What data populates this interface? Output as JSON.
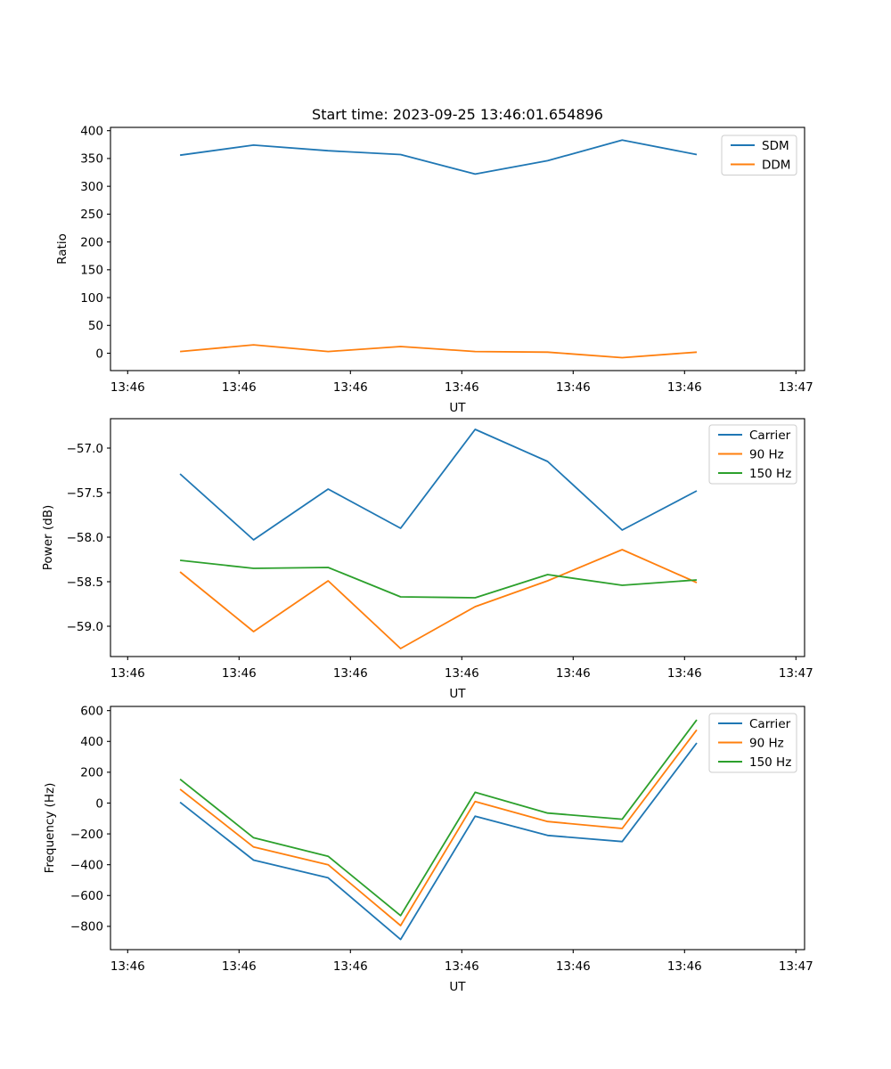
{
  "title": "Start time: 2023-09-25 13:46:01.654896",
  "colors": {
    "blue": "#1f77b4",
    "orange": "#ff7f0e",
    "green": "#2ca02c",
    "spine": "#000000",
    "legend_border": "#cccccc"
  },
  "x_axis": {
    "label": "UT",
    "tick_labels": [
      "13:46",
      "13:46",
      "13:46",
      "13:46",
      "13:46",
      "13:46",
      "13:47"
    ],
    "tick_seconds": [
      0,
      10,
      20,
      30,
      40,
      50,
      60
    ]
  },
  "chart_data": [
    {
      "type": "line",
      "name": "ratio",
      "title": "Start time: 2023-09-25 13:46:01.654896",
      "xlabel": "UT",
      "ylabel": "Ratio",
      "x_tick_labels": [
        "13:46",
        "13:46",
        "13:46",
        "13:46",
        "13:46",
        "13:46",
        "13:47"
      ],
      "x_tick_seconds": [
        0,
        10,
        20,
        30,
        40,
        50,
        60
      ],
      "x_seconds": [
        4.7,
        11.3,
        18.0,
        24.5,
        31.2,
        37.7,
        44.4,
        51.1
      ],
      "yticks": [
        0,
        50,
        100,
        150,
        200,
        250,
        300,
        350,
        400
      ],
      "ytick_labels": [
        "0",
        "50",
        "100",
        "150",
        "200",
        "250",
        "300",
        "350",
        "400"
      ],
      "ylim": [
        -31.2,
        405.9
      ],
      "grid": false,
      "legend_position": "upper right",
      "series": [
        {
          "name": "SDM",
          "color": "#1f77b4",
          "values": [
            356,
            374,
            364,
            357,
            322,
            346,
            383,
            357
          ]
        },
        {
          "name": "DDM",
          "color": "#ff7f0e",
          "values": [
            3,
            15,
            3,
            12,
            3,
            2,
            -8,
            2
          ]
        }
      ]
    },
    {
      "type": "line",
      "name": "power",
      "xlabel": "UT",
      "ylabel": "Power (dB)",
      "x_tick_labels": [
        "13:46",
        "13:46",
        "13:46",
        "13:46",
        "13:46",
        "13:46",
        "13:47"
      ],
      "x_tick_seconds": [
        0,
        10,
        20,
        30,
        40,
        50,
        60
      ],
      "x_seconds": [
        4.7,
        11.3,
        18.0,
        24.5,
        31.2,
        37.7,
        44.4,
        51.1
      ],
      "yticks": [
        -57.0,
        -57.5,
        -58.0,
        -58.5,
        -59.0
      ],
      "ytick_labels": [
        "−57.0",
        "−57.5",
        "−58.0",
        "−58.5",
        "−59.0"
      ],
      "ylim": [
        -59.34,
        -56.67
      ],
      "grid": false,
      "legend_position": "upper right",
      "series": [
        {
          "name": "Carrier",
          "color": "#1f77b4",
          "values": [
            -57.29,
            -58.03,
            -57.46,
            -57.9,
            -56.79,
            -57.15,
            -57.92,
            -57.48
          ]
        },
        {
          "name": "90 Hz",
          "color": "#ff7f0e",
          "values": [
            -58.39,
            -59.06,
            -58.49,
            -59.25,
            -58.78,
            -58.49,
            -58.14,
            -58.51
          ]
        },
        {
          "name": "150 Hz",
          "color": "#2ca02c",
          "values": [
            -58.26,
            -58.35,
            -58.34,
            -58.67,
            -58.68,
            -58.42,
            -58.54,
            -58.48
          ]
        }
      ]
    },
    {
      "type": "line",
      "name": "frequency",
      "xlabel": "UT",
      "ylabel": "Frequency (Hz)",
      "x_tick_labels": [
        "13:46",
        "13:46",
        "13:46",
        "13:46",
        "13:46",
        "13:46",
        "13:47"
      ],
      "x_tick_seconds": [
        0,
        10,
        20,
        30,
        40,
        50,
        60
      ],
      "x_seconds": [
        4.7,
        11.3,
        18.0,
        24.5,
        31.2,
        37.7,
        44.4,
        51.1
      ],
      "yticks": [
        600,
        400,
        200,
        0,
        -200,
        -400,
        -600,
        -800
      ],
      "ytick_labels": [
        "600",
        "400",
        "200",
        "0",
        "−200",
        "−400",
        "−600",
        "−800"
      ],
      "ylim": [
        -951,
        627
      ],
      "grid": false,
      "legend_position": "upper right",
      "series": [
        {
          "name": "Carrier",
          "color": "#1f77b4",
          "values": [
            5,
            -370,
            -485,
            -885,
            -85,
            -210,
            -250,
            390
          ]
        },
        {
          "name": "90 Hz",
          "color": "#ff7f0e",
          "values": [
            90,
            -285,
            -400,
            -795,
            10,
            -120,
            -165,
            475
          ]
        },
        {
          "name": "150 Hz",
          "color": "#2ca02c",
          "values": [
            155,
            -225,
            -345,
            -730,
            70,
            -65,
            -105,
            540
          ]
        }
      ]
    }
  ]
}
